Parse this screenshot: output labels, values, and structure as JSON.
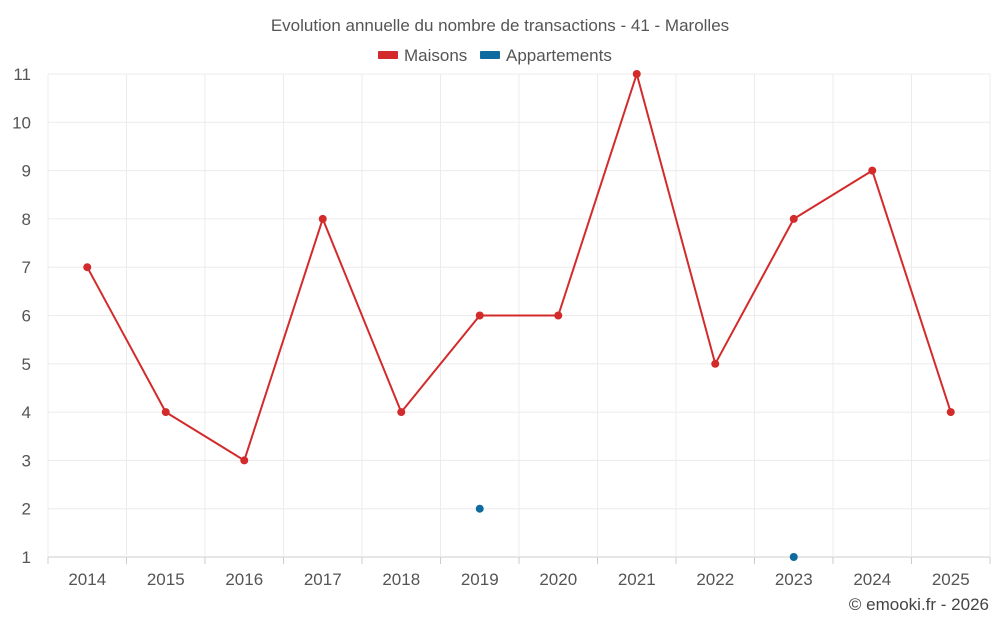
{
  "chart_data": {
    "type": "line",
    "title": "Evolution annuelle du nombre de transactions - 41 - Marolles",
    "x": [
      2014,
      2015,
      2016,
      2017,
      2018,
      2019,
      2020,
      2021,
      2022,
      2023,
      2024,
      2025
    ],
    "x_tick_labels": [
      "2014",
      "2015",
      "2016",
      "2017",
      "2018",
      "2019",
      "2020",
      "2021",
      "2022",
      "2023",
      "2024",
      "2025"
    ],
    "y_tick_labels": [
      "1",
      "2",
      "3",
      "4",
      "5",
      "6",
      "7",
      "8",
      "9",
      "10",
      "11"
    ],
    "ylim": [
      1,
      11
    ],
    "grid": true,
    "legend_position": "top-center",
    "series": [
      {
        "name": "Maisons",
        "color": "#d32b2b",
        "values": [
          7,
          4,
          3,
          8,
          4,
          6,
          6,
          11,
          5,
          8,
          9,
          4
        ]
      },
      {
        "name": "Appartements",
        "color": "#0f6aa0",
        "values": [
          null,
          null,
          null,
          null,
          null,
          2,
          null,
          null,
          null,
          1,
          null,
          null
        ]
      }
    ]
  },
  "credit": "© emooki.fr - 2026"
}
